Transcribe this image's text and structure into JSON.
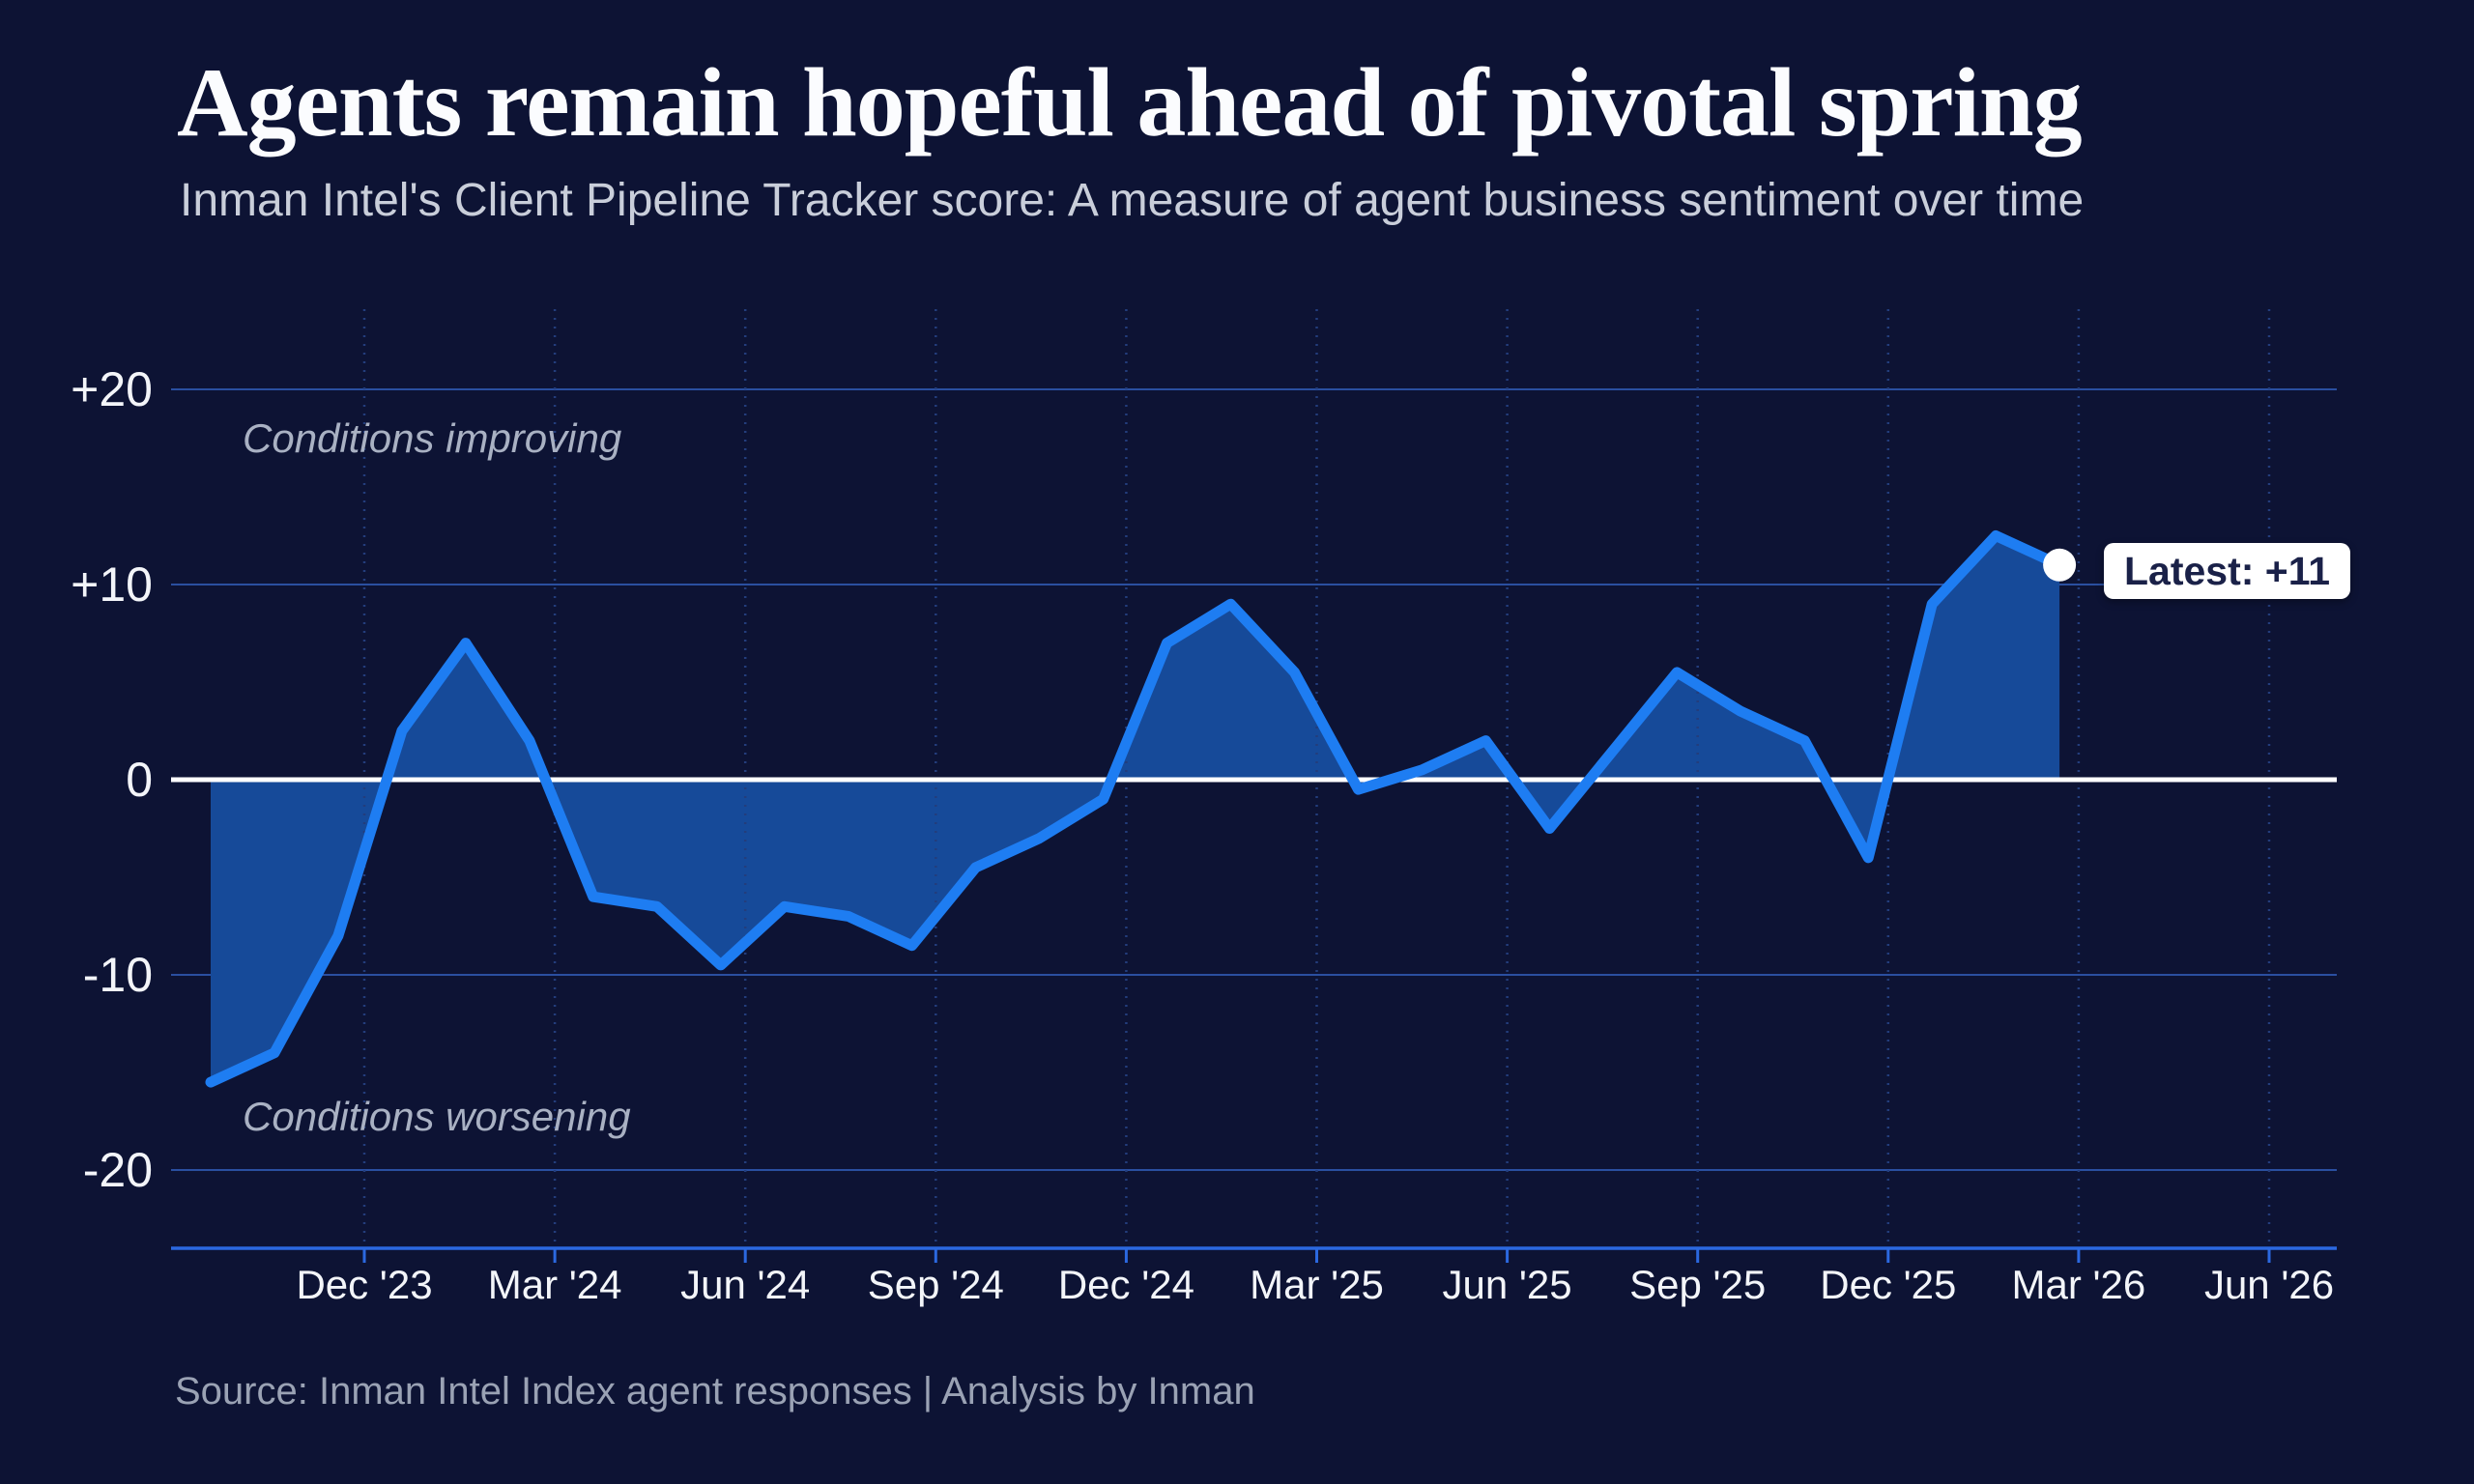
{
  "header": {
    "title": "Agents remain hopeful ahead of pivotal spring",
    "subtitle": "Inman Intel's Client Pipeline Tracker score: A measure of agent business sentiment over time"
  },
  "annotations": {
    "improving": "Conditions improving",
    "worsening": "Conditions worsening"
  },
  "callout": {
    "latest_label": "Latest: +11"
  },
  "footer": {
    "source_line": "Source: Inman Intel Index agent responses | Analysis by Inman"
  },
  "colors": {
    "background": "#0D1334",
    "line": "#1E7DF2",
    "area_fill": "#164A99",
    "zero_line": "#FFFFFF",
    "h_gridline": "#2A4FA0",
    "v_gridline": "#233D7C",
    "axis_line": "#2B68E0",
    "title_text": "#FBFCFE",
    "subtitle_text": "#C9CEDA",
    "annotation_text": "#A9B1C3",
    "tick_label": "#F3F5F9",
    "source_text": "#9AA2B4",
    "callout_bg": "#FFFFFF",
    "callout_text": "#1A2148",
    "marker": "#FFFFFF"
  },
  "chart_data": {
    "type": "area",
    "title": "Inman Intel Client Pipeline Tracker score",
    "series_name": "Client Pipeline Tracker score",
    "x": [
      "Oct '23",
      "Nov '23",
      "Dec '23",
      "Jan '24",
      "Feb '24",
      "Mar '24",
      "Apr '24",
      "May '24",
      "Jun '24",
      "Jul '24",
      "Aug '24",
      "Sep '24",
      "Oct '24",
      "Nov '24",
      "Dec '24",
      "Jan '25",
      "Feb '25",
      "Mar '25",
      "Apr '25",
      "May '25",
      "Jun '25",
      "Jul '25",
      "Aug '25",
      "Sep '25",
      "Oct '25",
      "Nov '25",
      "Dec '25",
      "Jan '26",
      "Feb '26",
      "Mar '26"
    ],
    "values": [
      -15.5,
      -14,
      -8,
      2.5,
      7,
      2,
      -6,
      -6.5,
      -9.5,
      -6.5,
      -7,
      -8.5,
      -4.5,
      -3,
      -1,
      7,
      9,
      5.5,
      -0.5,
      0.5,
      2,
      -2.5,
      1.5,
      5.5,
      3.5,
      2,
      -4,
      9,
      12.5,
      11
    ],
    "latest": {
      "month": "Mar '26",
      "value": 11
    },
    "ylim": [
      -24,
      20
    ],
    "y_ticks": [
      {
        "label": "+20",
        "value": 20
      },
      {
        "label": "+10",
        "value": 10
      },
      {
        "label": "0",
        "value": 0
      },
      {
        "label": "-10",
        "value": -10
      },
      {
        "label": "-20",
        "value": -20
      }
    ],
    "x_tick_labels": [
      "Dec '23",
      "Mar '24",
      "Jun '24",
      "Sep '24",
      "Dec '24",
      "Mar '25",
      "Jun '25",
      "Sep '25",
      "Dec '25",
      "Mar '26",
      "Jun '26"
    ],
    "grid": true,
    "zero_baseline": true,
    "legend": "none"
  }
}
